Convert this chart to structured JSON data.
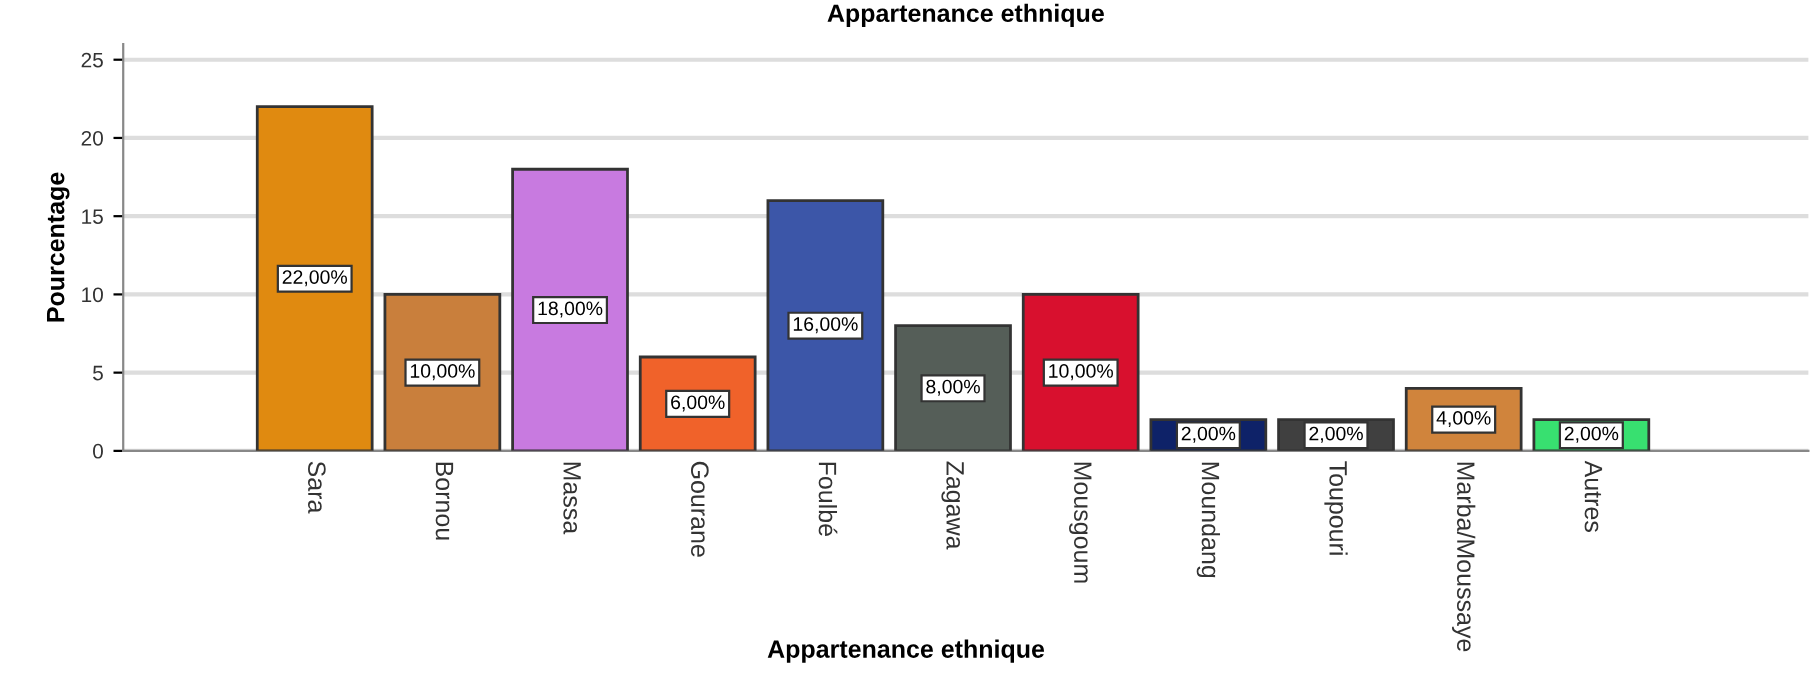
{
  "chart_data": {
    "type": "bar",
    "title": "Appartenance ethnique",
    "xlabel": "Appartenance ethnique",
    "ylabel": "Pourcentage",
    "categories": [
      "Sara",
      "Bornou",
      "Massa",
      "Gourane",
      "Foulbé",
      "Zagawa",
      "Mousgoum",
      "Moundang",
      "Toupouri",
      "Marba/Moussaye",
      "Autres"
    ],
    "values": [
      22,
      10,
      18,
      6,
      16,
      8,
      10,
      2,
      2,
      4,
      2
    ],
    "colors": [
      "#e08a10",
      "#c97f3c",
      "#c87ae0",
      "#f0622a",
      "#3c56a8",
      "#555e58",
      "#d8102e",
      "#0e2268",
      "#404040",
      "#d0843c",
      "#38e070"
    ],
    "value_labels": [
      "22,00%",
      "10,00%",
      "18,00%",
      "6,00%",
      "16,00%",
      "8,00%",
      "10,00%",
      "2,00%",
      "2,00%",
      "4,00%",
      "2,00%"
    ],
    "ylim": [
      0,
      26
    ],
    "yticks": [
      0,
      5,
      10,
      15,
      20,
      25
    ],
    "grid": "y"
  }
}
